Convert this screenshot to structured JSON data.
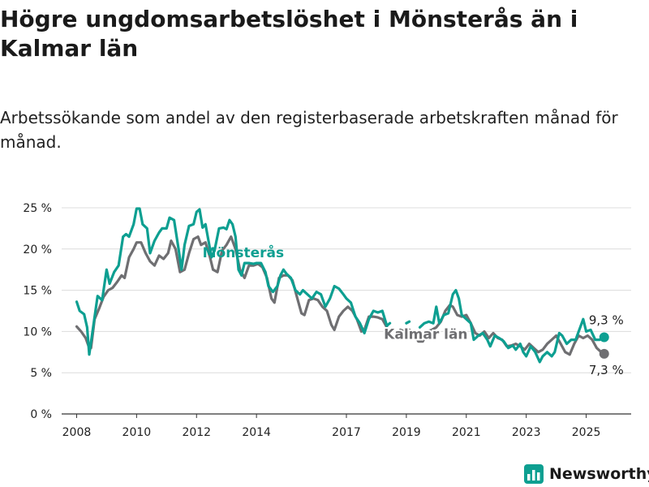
{
  "title": "Högre ungdomsarbetslöshet i Mönsterås än i Kalmar län",
  "subtitle": "Arbetssökande som andel av den registerbaserade arbetskraften månad för månad.",
  "brand": {
    "name": "Newsworthy"
  },
  "colors": {
    "monsteras": "#0d9f91",
    "kalmar": "#6f6f72",
    "grid": "#dcdcdc",
    "axis": "#333333"
  },
  "chart_data": {
    "type": "line",
    "x_unit": "year (decimal)",
    "y_unit": "%",
    "xlim": [
      2007.5,
      2026.5
    ],
    "ylim": [
      0,
      25
    ],
    "y_ticks": [
      0,
      5,
      10,
      15,
      20,
      25
    ],
    "y_tick_labels": [
      "0 %",
      "5 %",
      "10 %",
      "15 %",
      "20 %",
      "25 %"
    ],
    "x_ticks": [
      2008,
      2010,
      2012,
      2014,
      2017,
      2019,
      2021,
      2023,
      2025
    ],
    "x_tick_labels": [
      "2008",
      "2010",
      "2012",
      "2014",
      "2017",
      "2019",
      "2021",
      "2023",
      "2025"
    ],
    "grid": "horizontal",
    "series": [
      {
        "name": "Mönsterås",
        "color": "#0d9f91",
        "end_label": "9,3 %",
        "points": [
          [
            2008.0,
            13.6
          ],
          [
            2008.1,
            12.5
          ],
          [
            2008.25,
            12.1
          ],
          [
            2008.35,
            10.5
          ],
          [
            2008.42,
            7.2
          ],
          [
            2008.55,
            10.5
          ],
          [
            2008.7,
            14.3
          ],
          [
            2008.85,
            13.8
          ],
          [
            2009.0,
            17.5
          ],
          [
            2009.1,
            15.8
          ],
          [
            2009.25,
            17.2
          ],
          [
            2009.4,
            18.0
          ],
          [
            2009.55,
            21.5
          ],
          [
            2009.65,
            21.8
          ],
          [
            2009.75,
            21.5
          ],
          [
            2009.9,
            23.0
          ],
          [
            2010.0,
            24.9
          ],
          [
            2010.1,
            24.9
          ],
          [
            2010.2,
            23.0
          ],
          [
            2010.35,
            22.5
          ],
          [
            2010.45,
            19.5
          ],
          [
            2010.6,
            21.0
          ],
          [
            2010.75,
            22.0
          ],
          [
            2010.85,
            22.5
          ],
          [
            2011.0,
            22.5
          ],
          [
            2011.1,
            23.8
          ],
          [
            2011.25,
            23.5
          ],
          [
            2011.4,
            20.0
          ],
          [
            2011.5,
            17.5
          ],
          [
            2011.6,
            20.5
          ],
          [
            2011.75,
            22.8
          ],
          [
            2011.9,
            23.0
          ],
          [
            2012.0,
            24.5
          ],
          [
            2012.1,
            24.8
          ],
          [
            2012.2,
            22.6
          ],
          [
            2012.3,
            23.0
          ],
          [
            2012.4,
            21.0
          ],
          [
            2012.5,
            19.0
          ],
          [
            2012.6,
            19.8
          ],
          [
            2012.75,
            22.5
          ],
          [
            2012.9,
            22.6
          ],
          [
            2013.0,
            22.4
          ],
          [
            2013.1,
            23.5
          ],
          [
            2013.2,
            23.0
          ],
          [
            2013.3,
            21.5
          ],
          [
            2013.4,
            17.5
          ],
          [
            2013.5,
            16.8
          ],
          [
            2013.6,
            18.3
          ],
          [
            2013.75,
            18.3
          ],
          [
            2013.9,
            18.2
          ],
          [
            2014.0,
            18.3
          ],
          [
            2014.15,
            18.3
          ],
          [
            2014.3,
            17.2
          ],
          [
            2014.4,
            15.5
          ],
          [
            2014.55,
            14.8
          ],
          [
            2014.7,
            15.5
          ],
          [
            2014.8,
            16.8
          ],
          [
            2014.9,
            17.5
          ],
          [
            2015.0,
            17.0
          ],
          [
            2015.15,
            16.5
          ],
          [
            2015.3,
            15.0
          ],
          [
            2015.45,
            14.5
          ],
          [
            2015.55,
            15.0
          ],
          [
            2015.7,
            14.5
          ],
          [
            2015.85,
            14.0
          ],
          [
            2016.0,
            14.8
          ],
          [
            2016.15,
            14.5
          ],
          [
            2016.3,
            13.0
          ],
          [
            2016.45,
            14.0
          ],
          [
            2016.6,
            15.5
          ],
          [
            2016.75,
            15.2
          ],
          [
            2016.9,
            14.5
          ],
          [
            2017.0,
            14.0
          ],
          [
            2017.15,
            13.5
          ],
          [
            2017.3,
            11.8
          ],
          [
            2017.45,
            11.0
          ],
          [
            2017.6,
            9.8
          ],
          [
            2017.75,
            11.5
          ],
          [
            2017.9,
            12.5
          ],
          [
            2018.05,
            12.3
          ],
          [
            2018.2,
            12.5
          ],
          [
            2018.35,
            10.7
          ],
          [
            2018.45,
            11.0
          ],
          null,
          [
            2019.0,
            11.0
          ],
          [
            2019.1,
            11.2
          ],
          null,
          [
            2019.45,
            10.5
          ],
          [
            2019.6,
            11.0
          ],
          [
            2019.75,
            11.2
          ],
          [
            2019.9,
            11.0
          ],
          [
            2020.0,
            13.0
          ],
          [
            2020.1,
            11.0
          ],
          [
            2020.25,
            12.0
          ],
          [
            2020.4,
            12.2
          ],
          [
            2020.55,
            14.5
          ],
          [
            2020.65,
            15.0
          ],
          [
            2020.75,
            14.0
          ],
          [
            2020.85,
            12.0
          ],
          [
            2021.0,
            11.5
          ],
          [
            2021.15,
            11.0
          ],
          [
            2021.25,
            9.0
          ],
          [
            2021.4,
            9.5
          ],
          [
            2021.55,
            9.8
          ],
          [
            2021.7,
            9.0
          ],
          [
            2021.8,
            8.2
          ],
          [
            2021.95,
            9.5
          ],
          [
            2022.1,
            9.2
          ],
          [
            2022.25,
            8.8
          ],
          [
            2022.4,
            8.0
          ],
          [
            2022.55,
            8.3
          ],
          [
            2022.65,
            7.8
          ],
          [
            2022.8,
            8.5
          ],
          [
            2022.9,
            7.5
          ],
          [
            2023.0,
            7.0
          ],
          [
            2023.15,
            8.2
          ],
          [
            2023.3,
            7.5
          ],
          [
            2023.45,
            6.3
          ],
          [
            2023.55,
            7.0
          ],
          [
            2023.7,
            7.5
          ],
          [
            2023.85,
            7.0
          ],
          [
            2023.95,
            7.5
          ],
          [
            2024.1,
            9.8
          ],
          [
            2024.2,
            9.5
          ],
          [
            2024.35,
            8.5
          ],
          [
            2024.5,
            9.0
          ],
          [
            2024.65,
            9.0
          ],
          [
            2024.8,
            10.5
          ],
          [
            2024.9,
            11.5
          ],
          [
            2025.0,
            10.0
          ],
          [
            2025.15,
            10.2
          ],
          [
            2025.3,
            9.0
          ],
          [
            2025.45,
            9.0
          ],
          [
            2025.6,
            9.3
          ]
        ]
      },
      {
        "name": "Kalmar län",
        "color": "#6f6f72",
        "end_label": "7,3 %",
        "points": [
          [
            2008.0,
            10.6
          ],
          [
            2008.15,
            10.0
          ],
          [
            2008.3,
            9.2
          ],
          [
            2008.4,
            8.2
          ],
          [
            2008.48,
            8.0
          ],
          [
            2008.6,
            11.5
          ],
          [
            2008.75,
            12.8
          ],
          [
            2008.9,
            14.2
          ],
          [
            2009.05,
            15.0
          ],
          [
            2009.2,
            15.3
          ],
          [
            2009.35,
            16.0
          ],
          [
            2009.5,
            16.8
          ],
          [
            2009.6,
            16.5
          ],
          [
            2009.75,
            19.0
          ],
          [
            2009.9,
            20.0
          ],
          [
            2010.0,
            20.8
          ],
          [
            2010.15,
            20.8
          ],
          [
            2010.3,
            19.5
          ],
          [
            2010.45,
            18.5
          ],
          [
            2010.6,
            18.0
          ],
          [
            2010.75,
            19.2
          ],
          [
            2010.9,
            18.8
          ],
          [
            2011.05,
            19.5
          ],
          [
            2011.15,
            21.0
          ],
          [
            2011.3,
            20.0
          ],
          [
            2011.45,
            17.2
          ],
          [
            2011.6,
            17.5
          ],
          [
            2011.75,
            19.5
          ],
          [
            2011.9,
            21.2
          ],
          [
            2012.05,
            21.5
          ],
          [
            2012.15,
            20.5
          ],
          [
            2012.3,
            20.8
          ],
          [
            2012.45,
            19.0
          ],
          [
            2012.55,
            17.5
          ],
          [
            2012.7,
            17.2
          ],
          [
            2012.85,
            19.8
          ],
          [
            2013.0,
            20.5
          ],
          [
            2013.15,
            21.5
          ],
          [
            2013.3,
            20.0
          ],
          [
            2013.45,
            17.5
          ],
          [
            2013.6,
            16.5
          ],
          [
            2013.75,
            18.0
          ],
          [
            2013.9,
            18.0
          ],
          [
            2014.05,
            18.2
          ],
          [
            2014.2,
            17.8
          ],
          [
            2014.35,
            16.5
          ],
          [
            2014.5,
            14.0
          ],
          [
            2014.6,
            13.5
          ],
          [
            2014.75,
            16.5
          ],
          [
            2014.9,
            16.8
          ],
          [
            2015.05,
            16.8
          ],
          [
            2015.2,
            16.2
          ],
          [
            2015.35,
            14.2
          ],
          [
            2015.5,
            12.2
          ],
          [
            2015.6,
            12.0
          ],
          [
            2015.75,
            13.8
          ],
          [
            2015.9,
            14.0
          ],
          [
            2016.05,
            13.8
          ],
          [
            2016.2,
            13.0
          ],
          [
            2016.35,
            12.5
          ],
          [
            2016.5,
            10.8
          ],
          [
            2016.6,
            10.2
          ],
          [
            2016.75,
            11.8
          ],
          [
            2016.9,
            12.5
          ],
          [
            2017.05,
            13.0
          ],
          [
            2017.2,
            12.5
          ],
          [
            2017.35,
            11.5
          ],
          [
            2017.5,
            10.0
          ],
          [
            2017.6,
            10.2
          ],
          [
            2017.75,
            11.8
          ],
          [
            2017.9,
            11.8
          ],
          [
            2018.05,
            11.7
          ],
          [
            2018.2,
            11.5
          ],
          [
            2018.35,
            10.5
          ],
          [
            2018.5,
            9.5
          ],
          [
            2018.65,
            9.2
          ],
          [
            2018.8,
            10.2
          ],
          [
            2018.95,
            10.0
          ],
          [
            2019.1,
            10.2
          ],
          [
            2019.25,
            9.8
          ],
          [
            2019.4,
            8.8
          ],
          [
            2019.55,
            8.8
          ],
          [
            2019.7,
            10.0
          ],
          [
            2019.85,
            10.2
          ],
          [
            2020.0,
            10.5
          ],
          [
            2020.15,
            11.2
          ],
          [
            2020.3,
            12.5
          ],
          [
            2020.45,
            13.2
          ],
          [
            2020.55,
            13.0
          ],
          [
            2020.7,
            12.0
          ],
          [
            2020.85,
            11.8
          ],
          [
            2021.0,
            12.0
          ],
          [
            2021.15,
            11.0
          ],
          [
            2021.3,
            9.8
          ],
          [
            2021.45,
            9.5
          ],
          [
            2021.6,
            10.0
          ],
          [
            2021.75,
            9.2
          ],
          [
            2021.9,
            9.8
          ],
          [
            2022.05,
            9.2
          ],
          [
            2022.2,
            9.0
          ],
          [
            2022.35,
            8.2
          ],
          [
            2022.5,
            8.3
          ],
          [
            2022.65,
            8.5
          ],
          [
            2022.8,
            8.2
          ],
          [
            2022.95,
            7.8
          ],
          [
            2023.1,
            8.5
          ],
          [
            2023.25,
            8.0
          ],
          [
            2023.4,
            7.5
          ],
          [
            2023.55,
            7.8
          ],
          [
            2023.7,
            8.5
          ],
          [
            2023.85,
            9.0
          ],
          [
            2024.0,
            9.5
          ],
          [
            2024.15,
            8.5
          ],
          [
            2024.3,
            7.5
          ],
          [
            2024.45,
            7.2
          ],
          [
            2024.6,
            8.5
          ],
          [
            2024.75,
            9.5
          ],
          [
            2024.9,
            9.2
          ],
          [
            2025.05,
            9.5
          ],
          [
            2025.2,
            9.0
          ],
          [
            2025.35,
            8.0
          ],
          [
            2025.5,
            7.5
          ],
          [
            2025.6,
            7.3
          ]
        ]
      }
    ]
  }
}
